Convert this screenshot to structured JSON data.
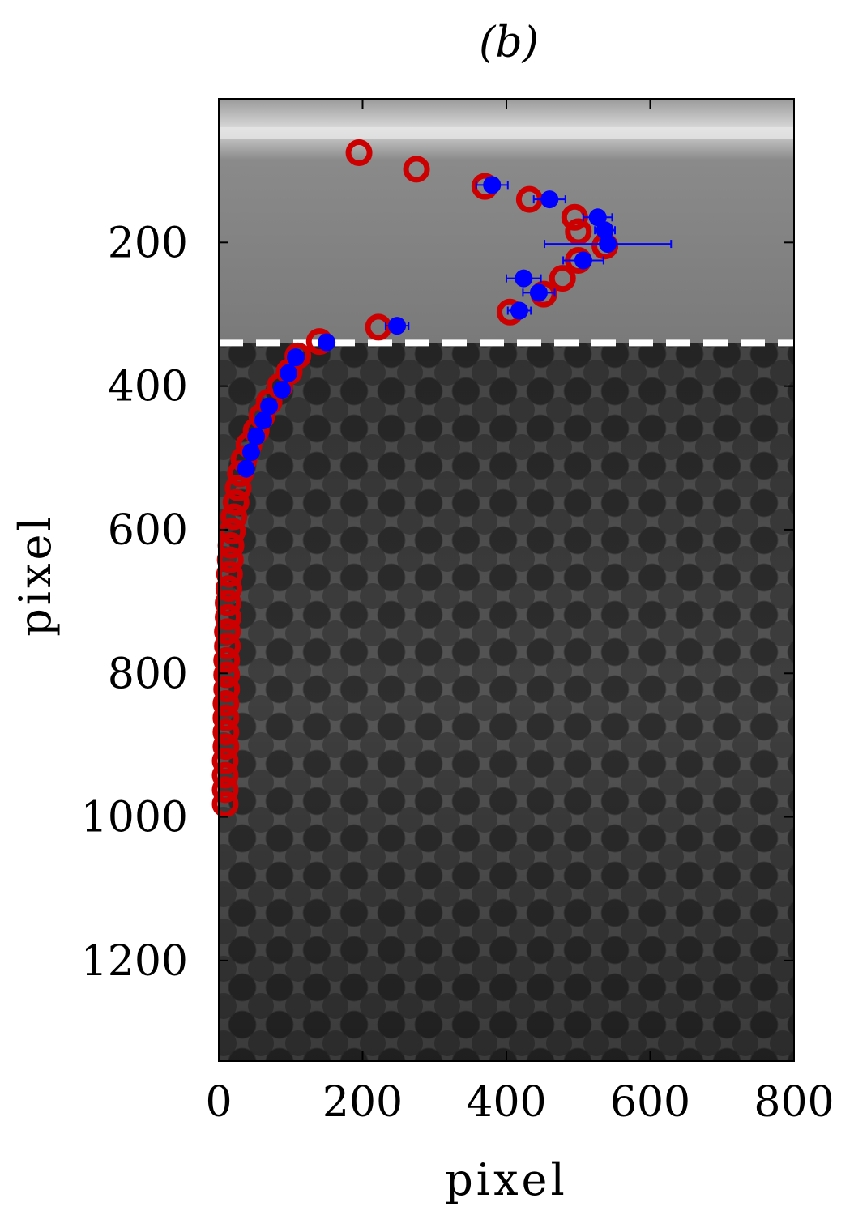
{
  "figure": {
    "panel_label": "(b)"
  },
  "chart_data": {
    "type": "scatter",
    "title": "(b)",
    "xlabel": "pixel",
    "ylabel": "pixel",
    "xlim": [
      0,
      800
    ],
    "ylim": [
      1340,
      0
    ],
    "y_inverted": true,
    "x_ticks": [
      0,
      200,
      400,
      600,
      800
    ],
    "y_ticks": [
      200,
      400,
      600,
      800,
      1000,
      1200
    ],
    "background": "grayscale photograph of a packed bed of spheres with a clear liquid layer above",
    "threshold_line": {
      "y": 340,
      "style": "dashed",
      "color": "#ffffff"
    },
    "series": [
      {
        "marker": "open-circle",
        "color": "#cc0000",
        "points": [
          [
            195,
            75
          ],
          [
            275,
            98
          ],
          [
            370,
            122
          ],
          [
            432,
            140
          ],
          [
            495,
            165
          ],
          [
            500,
            185
          ],
          [
            537,
            205
          ],
          [
            500,
            225
          ],
          [
            478,
            250
          ],
          [
            452,
            272
          ],
          [
            405,
            297
          ],
          [
            222,
            318
          ],
          [
            140,
            338
          ],
          [
            110,
            358
          ],
          [
            98,
            380
          ],
          [
            85,
            400
          ],
          [
            70,
            422
          ],
          [
            60,
            442
          ],
          [
            52,
            462
          ],
          [
            42,
            482
          ],
          [
            35,
            502
          ],
          [
            30,
            522
          ],
          [
            27,
            542
          ],
          [
            24,
            562
          ],
          [
            21,
            582
          ],
          [
            19,
            602
          ],
          [
            17,
            622
          ],
          [
            16,
            642
          ],
          [
            15,
            662
          ],
          [
            14,
            682
          ],
          [
            13,
            702
          ],
          [
            13,
            722
          ],
          [
            12,
            742
          ],
          [
            12,
            762
          ],
          [
            11,
            782
          ],
          [
            11,
            802
          ],
          [
            11,
            822
          ],
          [
            10,
            842
          ],
          [
            10,
            862
          ],
          [
            10,
            882
          ],
          [
            10,
            902
          ],
          [
            9,
            922
          ],
          [
            9,
            942
          ],
          [
            9,
            962
          ],
          [
            9,
            982
          ]
        ]
      },
      {
        "marker": "filled-circle",
        "color": "#0000ff",
        "points": [
          {
            "x": 380,
            "y": 120,
            "xerr": 22
          },
          {
            "x": 460,
            "y": 140,
            "xerr": 22
          },
          {
            "x": 527,
            "y": 165,
            "xerr": 20
          },
          {
            "x": 537,
            "y": 183,
            "xerr": 14
          },
          {
            "x": 541,
            "y": 202,
            "xerr": 88
          },
          {
            "x": 507,
            "y": 225,
            "xerr": 28
          },
          {
            "x": 424,
            "y": 250,
            "xerr": 24
          },
          {
            "x": 445,
            "y": 270,
            "xerr": 22
          },
          {
            "x": 418,
            "y": 295,
            "xerr": 16
          },
          {
            "x": 248,
            "y": 316,
            "xerr": 16
          },
          {
            "x": 150,
            "y": 339,
            "xerr": 5
          },
          {
            "x": 107,
            "y": 360,
            "xerr": 4
          },
          {
            "x": 97,
            "y": 382,
            "xerr": 4
          },
          {
            "x": 88,
            "y": 405,
            "xerr": 4
          },
          {
            "x": 70,
            "y": 428,
            "xerr": 3
          },
          {
            "x": 62,
            "y": 448,
            "xerr": 3
          },
          {
            "x": 52,
            "y": 470,
            "xerr": 3
          },
          {
            "x": 45,
            "y": 492,
            "xerr": 3
          },
          {
            "x": 38,
            "y": 515,
            "xerr": 3
          }
        ]
      }
    ]
  }
}
